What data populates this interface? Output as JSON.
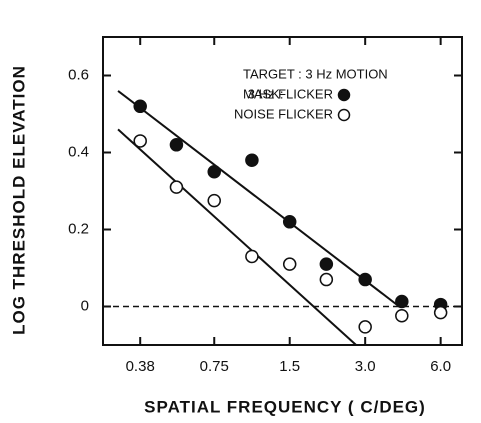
{
  "chart_data": {
    "type": "scatter",
    "y_label": "LOG THRESHOLD ELEVATION",
    "x_label": "SPATIAL FREQUENCY ( C/DEG)",
    "annotations": [
      "TARGET : 3 Hz MOTION",
      "MASK:"
    ],
    "x_scale": "log",
    "xlim": [
      0.27,
      7.3
    ],
    "xticks": [
      0.38,
      0.75,
      1.5,
      {
        "value": 3.0,
        "label": "3.0"
      },
      {
        "value": 6.0,
        "label": "6.0"
      }
    ],
    "ylim": [
      -0.1,
      0.7
    ],
    "yticks": [
      0,
      0.2,
      0.4,
      0.6
    ],
    "reference_line": 0,
    "series": [
      {
        "name": "3 Hz FLICKER",
        "color": "#111",
        "filled": true,
        "x": [
          0.38,
          0.53,
          0.75,
          1.06,
          1.5,
          2.1,
          3.0,
          4.2,
          6.0
        ],
        "values": [
          0.52,
          0.42,
          0.35,
          0.38,
          0.22,
          0.11,
          0.07,
          0.013,
          0.005
        ]
      },
      {
        "name": "NOISE FLICKER",
        "color": "#111",
        "filled": false,
        "x": [
          0.38,
          0.53,
          0.75,
          1.06,
          1.5,
          2.1,
          3.0,
          4.2,
          6.0
        ],
        "values": [
          0.43,
          0.31,
          0.275,
          0.13,
          0.11,
          0.07,
          -0.053,
          -0.024,
          -0.016
        ]
      }
    ],
    "fit_lines": [
      {
        "x": [
          0.31,
          4.1
        ],
        "y": [
          0.56,
          0
        ]
      },
      {
        "x": [
          0.31,
          2.76
        ],
        "y": [
          0.46,
          -0.1
        ]
      }
    ]
  }
}
